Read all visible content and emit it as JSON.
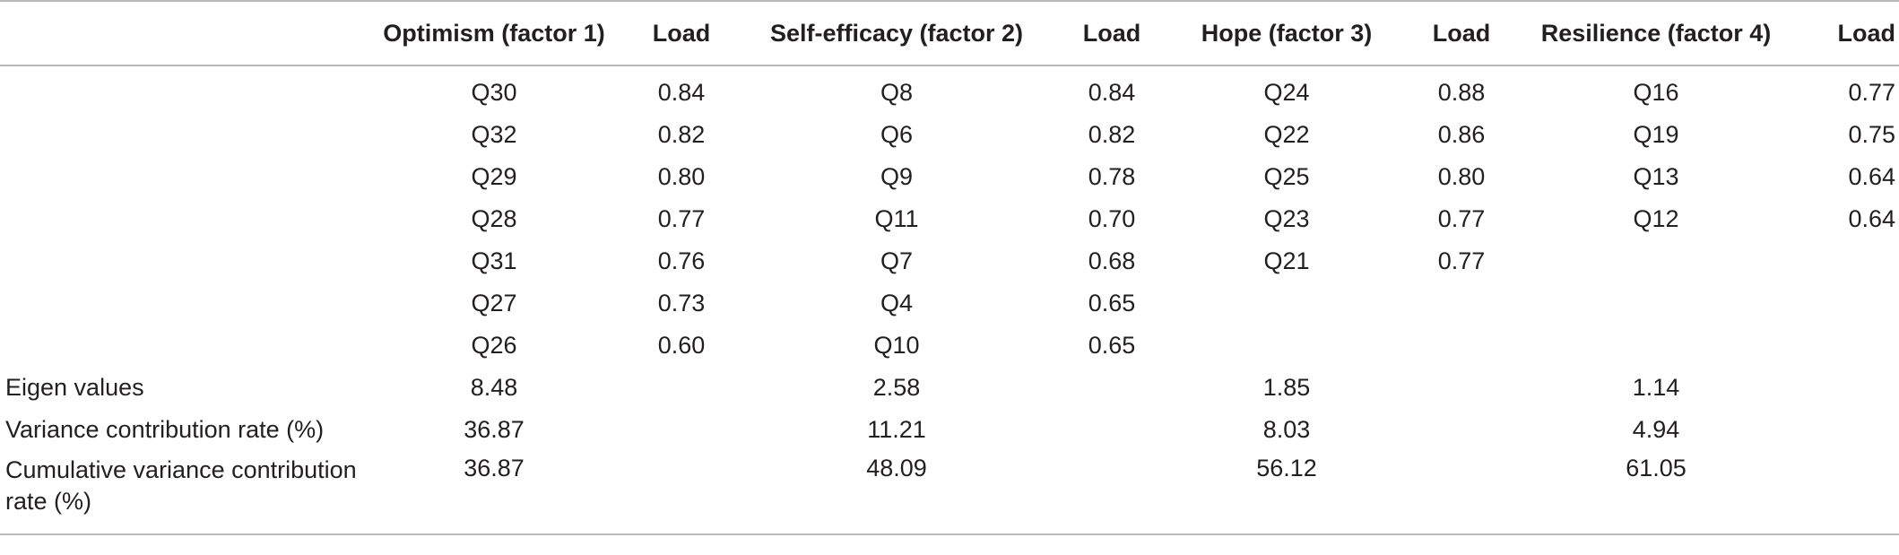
{
  "table": {
    "headers": [
      "",
      "Optimism (factor 1)",
      "Load",
      "Self-efficacy (factor 2)",
      "Load",
      "Hope (factor 3)",
      "Load",
      "Resilience (factor 4)",
      "Load"
    ],
    "item_rows": [
      [
        "Q30",
        "0.84",
        "Q8",
        "0.84",
        "Q24",
        "0.88",
        "Q16",
        "0.77"
      ],
      [
        "Q32",
        "0.82",
        "Q6",
        "0.82",
        "Q22",
        "0.86",
        "Q19",
        "0.75"
      ],
      [
        "Q29",
        "0.80",
        "Q9",
        "0.78",
        "Q25",
        "0.80",
        "Q13",
        "0.64"
      ],
      [
        "Q28",
        "0.77",
        "Q11",
        "0.70",
        "Q23",
        "0.77",
        "Q12",
        "0.64"
      ],
      [
        "Q31",
        "0.76",
        "Q7",
        "0.68",
        "Q21",
        "0.77",
        "",
        ""
      ],
      [
        "Q27",
        "0.73",
        "Q4",
        "0.65",
        "",
        "",
        "",
        ""
      ],
      [
        "Q26",
        "0.60",
        "Q10",
        "0.65",
        "",
        "",
        "",
        ""
      ]
    ],
    "summary_rows": [
      {
        "label": "Eigen values",
        "values": [
          "8.48",
          "2.58",
          "1.85",
          "1.14"
        ]
      },
      {
        "label": "Variance contribution rate (%)",
        "values": [
          "36.87",
          "11.21",
          "8.03",
          "4.94"
        ]
      },
      {
        "label": "Cumulative variance contribution rate (%)",
        "values": [
          "36.87",
          "48.09",
          "56.12",
          "61.05"
        ]
      }
    ]
  }
}
